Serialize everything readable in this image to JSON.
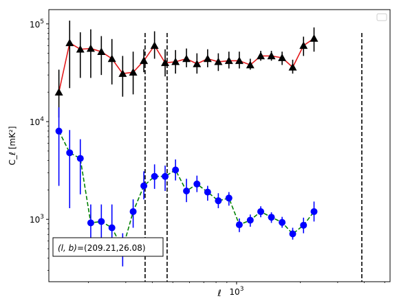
{
  "chart_data": {
    "type": "scatter",
    "title": "",
    "xlabel": "ℓ",
    "ylabel": "C_ℓ  [mK²]",
    "xscale": "log",
    "yscale": "log",
    "xlim": [
      130,
      5300
    ],
    "ylim": [
      230,
      140000
    ],
    "x_ticks": [
      {
        "value": 1000,
        "label_base": "10",
        "label_exp": "3"
      }
    ],
    "y_ticks": [
      {
        "value": 1000,
        "label_base": "10",
        "label_exp": "3"
      },
      {
        "value": 10000,
        "label_base": "10",
        "label_exp": "4"
      },
      {
        "value": 100000,
        "label_base": "10",
        "label_exp": "5"
      }
    ],
    "vlines": [
      370,
      470,
      3900
    ],
    "legend": "upper right (empty)",
    "annotation": {
      "text_var": "(l, b)",
      "text_value": "=(209.21,26.08)",
      "placement": "lower-left"
    },
    "series": [
      {
        "marker": "triangle",
        "marker_color": "#000000",
        "line_color": "#e31a1c",
        "line_style": "solid",
        "errorbar_color": "#000000",
        "x": [
          145,
          163,
          183,
          205,
          230,
          258,
          290,
          325,
          365,
          410,
          460,
          515,
          580,
          650,
          730,
          820,
          920,
          1030,
          1160,
          1300,
          1460,
          1640,
          1840,
          2070,
          2320,
          2600,
          2920,
          3280,
          3680,
          4130,
          4640
        ],
        "y": [
          20000,
          64000,
          55000,
          56000,
          52000,
          44000,
          31000,
          32000,
          42000,
          60000,
          40000,
          41000,
          44000,
          39000,
          44000,
          41000,
          42000,
          42000,
          38000,
          47000,
          47000,
          45000,
          36000,
          60000,
          71000,
          0,
          0,
          0,
          0,
          0,
          0
        ],
        "ylow": [
          11000,
          22000,
          28000,
          28000,
          30000,
          24000,
          18000,
          19000,
          32000,
          44000,
          29000,
          31000,
          36000,
          31000,
          36000,
          33000,
          35000,
          35000,
          34000,
          42000,
          42000,
          38000,
          31000,
          47000,
          52000,
          0,
          0,
          0,
          0,
          0,
          0
        ],
        "yhigh": [
          34000,
          108000,
          82000,
          88000,
          75000,
          70000,
          47000,
          52000,
          55000,
          84000,
          55000,
          54000,
          56000,
          50000,
          55000,
          50000,
          52000,
          52000,
          44000,
          53000,
          53000,
          52000,
          43000,
          74000,
          92000,
          0,
          0,
          0,
          0,
          0,
          0
        ]
      },
      {
        "marker": "circle",
        "marker_color": "#0000ff",
        "line_color": "#008000",
        "line_style": "dashed",
        "errorbar_color": "#0000ff",
        "x": [
          145,
          163,
          183,
          205,
          230,
          258,
          290,
          325,
          365,
          410,
          460,
          515,
          580,
          650,
          730,
          820,
          920,
          1030,
          1160,
          1300,
          1460,
          1640,
          1840,
          2070,
          2320,
          2600,
          2920,
          3280,
          3680,
          4130,
          4640
        ],
        "y": [
          8000,
          4800,
          4200,
          920,
          950,
          820,
          500,
          1200,
          2200,
          2750,
          2750,
          3200,
          1950,
          2300,
          1900,
          1550,
          1650,
          880,
          980,
          1200,
          1050,
          930,
          710,
          870,
          1200,
          0,
          0,
          0,
          0,
          0,
          0
        ],
        "ylow": [
          2200,
          1300,
          1800,
          420,
          500,
          530,
          330,
          820,
          1600,
          2050,
          1950,
          2500,
          1500,
          1900,
          1550,
          1300,
          1380,
          740,
          840,
          1050,
          920,
          820,
          620,
          720,
          950,
          0,
          0,
          0,
          0,
          0,
          0
        ],
        "yhigh": [
          14000,
          8200,
          6600,
          1420,
          1420,
          1420,
          720,
          1600,
          3100,
          3650,
          3550,
          4100,
          2600,
          2800,
          2200,
          1850,
          1900,
          1020,
          1120,
          1360,
          1180,
          1060,
          820,
          1040,
          1520,
          0,
          0,
          0,
          0,
          0,
          0
        ]
      }
    ]
  }
}
